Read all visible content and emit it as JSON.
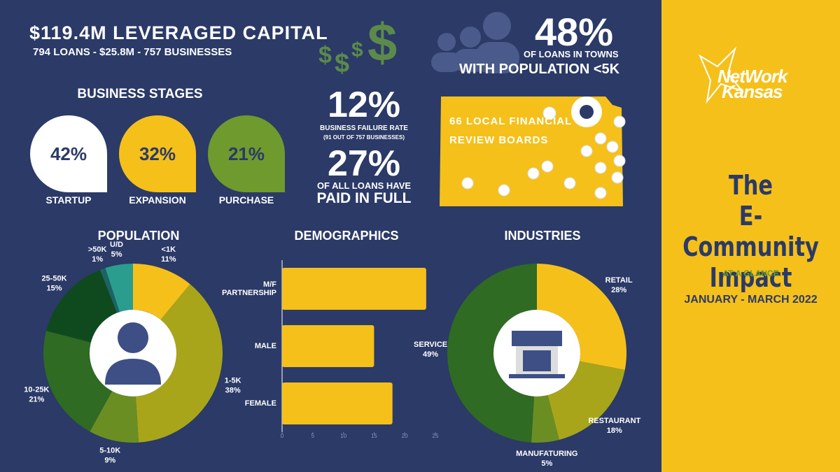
{
  "header": {
    "title": "$119.4M LEVERAGED CAPITAL",
    "subtitle": "794 LOANS - $25.8M - 757 BUSINESSES",
    "dollar_icon": "$"
  },
  "towns": {
    "value": "48%",
    "line1": "OF LOANS IN TOWNS",
    "line2": "WITH POPULATION <5K"
  },
  "stages": {
    "title": "BUSINESS STAGES",
    "items": [
      {
        "label": "STARTUP",
        "value": 42,
        "value_label": "42%",
        "color": "#ffffff"
      },
      {
        "label": "EXPANSION",
        "value": 32,
        "value_label": "32%",
        "color": "#f5c01a"
      },
      {
        "label": "PURCHASE",
        "value": 21,
        "value_label": "21%",
        "color": "#6e9a2e"
      }
    ]
  },
  "failure": {
    "value": "12%",
    "line1": "BUSINESS FAILURE RATE",
    "line2": "(91 OUT OF 757 BUSINESSES)"
  },
  "paid": {
    "value": "27%",
    "line1": "OF ALL LOANS HAVE",
    "line2": "PAID IN FULL"
  },
  "map": {
    "text": "66 LOCAL FINANCIAL REVIEW BOARDS"
  },
  "sidebar": {
    "logo_line1": "NetWork",
    "logo_line2": "Kansas",
    "title_line1": "The",
    "title_line2": "E-Community",
    "title_line3": "Impact",
    "tagline": "AT A GLANCE",
    "period": "JANUARY - MARCH 2022"
  },
  "chart_data": [
    {
      "type": "donut",
      "title": "POPULATION",
      "categories": [
        "<1K",
        "1-5K",
        "5-10K",
        "10-25K",
        "25-50K",
        ">50K",
        "U/D"
      ],
      "values": [
        11,
        38,
        9,
        21,
        15,
        1,
        5
      ],
      "value_labels": [
        "11%",
        "38%",
        "9%",
        "21%",
        "15%",
        "1%",
        "5%"
      ],
      "colors": [
        "#f5c01a",
        "#a8a51a",
        "#6b8e23",
        "#2f6b22",
        "#0f4a1f",
        "#1d6363",
        "#2a9d8f"
      ]
    },
    {
      "type": "hbar",
      "title": "DEMOGRAPHICS",
      "categories": [
        "M/F PARTNERSHIP",
        "MALE",
        "FEMALE"
      ],
      "values": [
        23.5,
        15,
        18
      ],
      "color": "#f5c01a",
      "xlim": [
        0,
        25
      ],
      "xticks": [
        0,
        5,
        10,
        15,
        20,
        25
      ]
    },
    {
      "type": "donut",
      "title": "INDUSTRIES",
      "categories": [
        "RETAIL",
        "RESTAURANT",
        "MANUFATURING",
        "SERVICE"
      ],
      "values": [
        28,
        18,
        5,
        49
      ],
      "value_labels": [
        "28%",
        "18%",
        "5%",
        "49%"
      ],
      "colors": [
        "#f5c01a",
        "#a8a51a",
        "#6b8e23",
        "#2f6b22"
      ]
    }
  ]
}
